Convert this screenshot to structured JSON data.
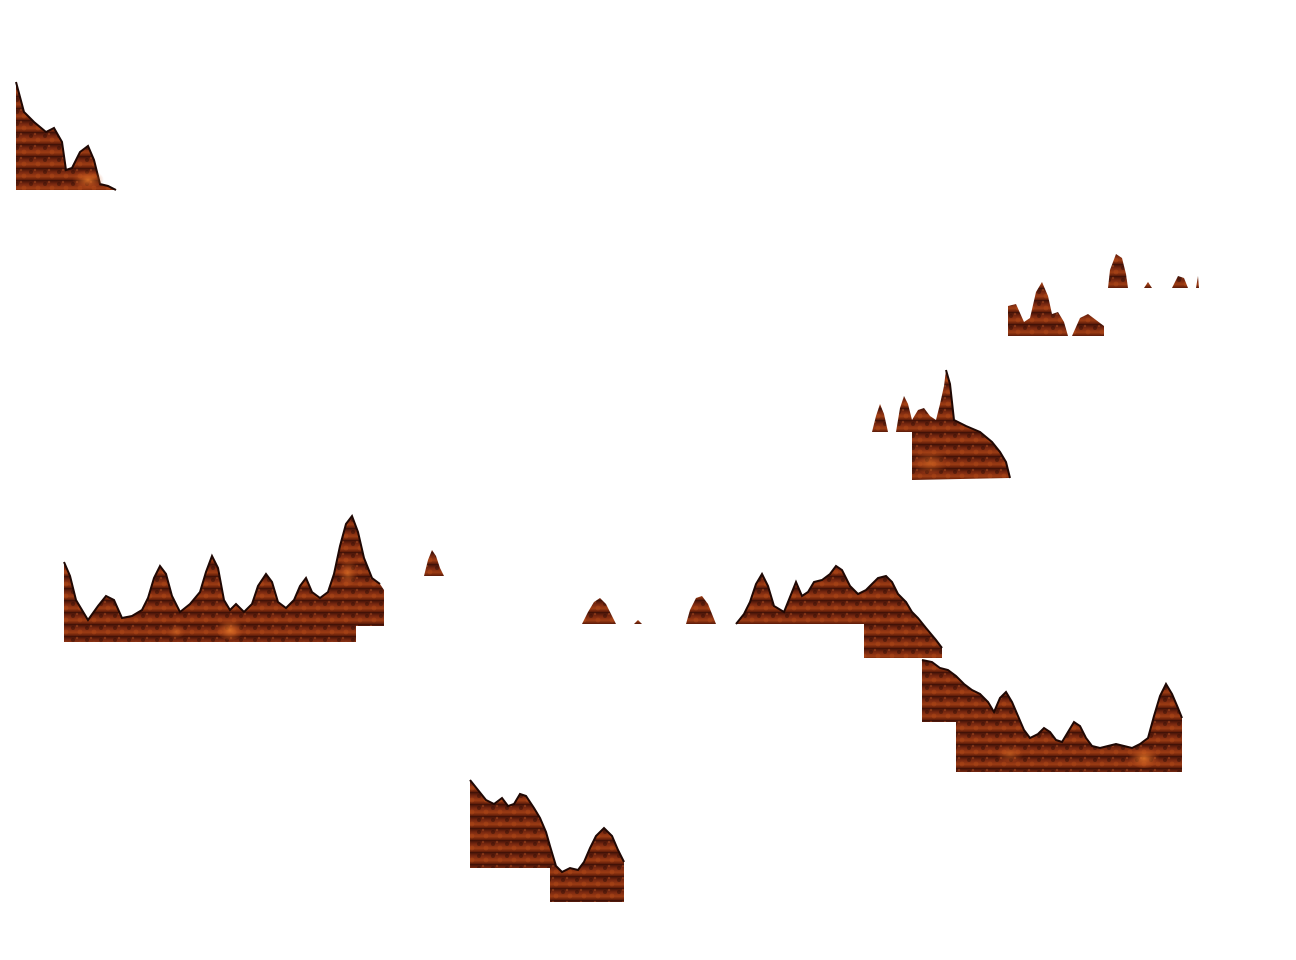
{
  "scene": {
    "background": "#ffffff",
    "terrain_colors": {
      "dark": "#1f0804",
      "mid": "#6a1f0c",
      "base": "#8a3212",
      "light": "#c9541c",
      "glow": "#e87a2a"
    },
    "platform_count": 11
  }
}
